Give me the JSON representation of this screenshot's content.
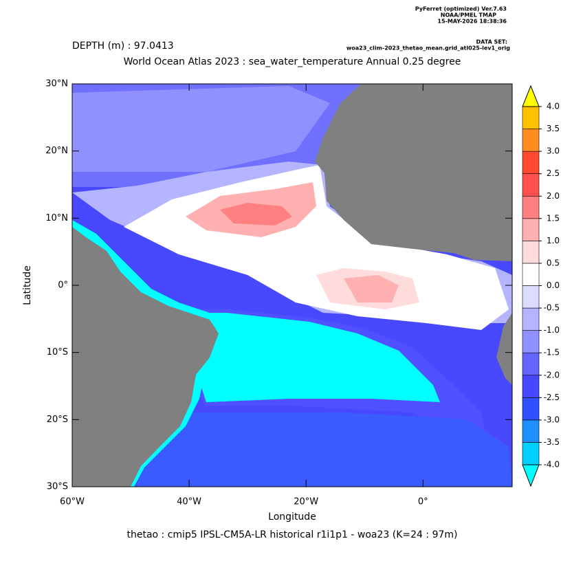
{
  "map": {
    "header": {
      "program": "PyFerret (optimized) Ver.7.63",
      "lab": "NOAA/PMEL TMAP",
      "timestamp": "15-MAY-2026 18:38:36",
      "dataset_label": "DATA SET:",
      "dataset": "woa23_clim-2023_thetao_mean.grid_atl025-lev1_orig"
    },
    "depth": "DEPTH (m) : 97.0413",
    "title": "World Ocean Atlas 2023 : sea_water_temperature Annual  0.25 degree",
    "xlabel": "Longitude",
    "ylabel": "Latitude",
    "caption": "thetao : cmip5 IPSL-CM5A-LR historical r1i1p1 - woa23  (K=24 : 97m)",
    "xlim": [
      -60,
      15.25
    ],
    "ylim": [
      -30,
      30
    ],
    "xticks": [
      {
        "value": -60,
        "label": "60°W"
      },
      {
        "value": -40,
        "label": "40°W"
      },
      {
        "value": -20,
        "label": "20°W"
      },
      {
        "value": 0,
        "label": "0°"
      }
    ],
    "yticks": [
      {
        "value": -30,
        "label": "30°S"
      },
      {
        "value": -20,
        "label": "20°S"
      },
      {
        "value": -10,
        "label": "10°S"
      },
      {
        "value": 0,
        "label": "0°"
      },
      {
        "value": 10,
        "label": "10°N"
      },
      {
        "value": 20,
        "label": "20°N"
      },
      {
        "value": 30,
        "label": "30°N"
      }
    ],
    "colorbar": {
      "lim": [
        -4,
        4
      ],
      "ticks": [
        {
          "value": -4,
          "label": "-4.0"
        },
        {
          "value": -3.5,
          "label": "-3.5"
        },
        {
          "value": -3,
          "label": "-3.0"
        },
        {
          "value": -2.5,
          "label": "-2.5"
        },
        {
          "value": -2,
          "label": "-2.0"
        },
        {
          "value": -1.5,
          "label": "-1.5"
        },
        {
          "value": -1,
          "label": "-1.0"
        },
        {
          "value": -0.5,
          "label": "-0.5"
        },
        {
          "value": 0,
          "label": "0.0"
        },
        {
          "value": 0.5,
          "label": "0.5"
        },
        {
          "value": 1,
          "label": "1.0"
        },
        {
          "value": 1.5,
          "label": "1.5"
        },
        {
          "value": 2,
          "label": "2.0"
        },
        {
          "value": 2.5,
          "label": "2.5"
        },
        {
          "value": 3,
          "label": "3.0"
        },
        {
          "value": 3.5,
          "label": "3.5"
        },
        {
          "value": 4,
          "label": "4.0"
        }
      ],
      "colors": [
        "#00d0ff",
        "#2090ff",
        "#3050ff",
        "#4848ff",
        "#6464ff",
        "#9090ff",
        "#b4b4ff",
        "#dcdcff",
        "#ffffff",
        "#ffdcdc",
        "#ffb0b0",
        "#ff8080",
        "#ff5050",
        "#ff4a30",
        "#ff8c20",
        "#ffc000"
      ],
      "under_color": "#00ffff",
      "over_color": "#ffff00"
    }
  }
}
